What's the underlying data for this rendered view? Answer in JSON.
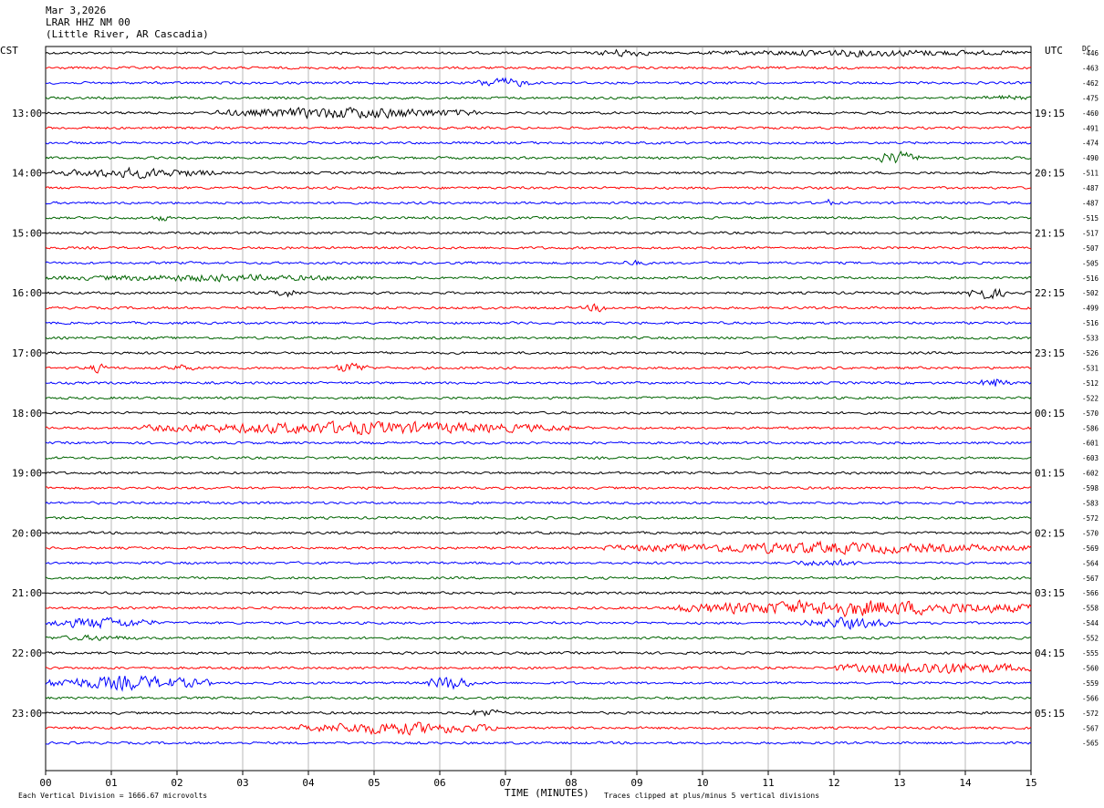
{
  "header": {
    "date": "Mar 3,2026",
    "station": "LRAR HHZ NM 00",
    "location": "(Little River, AR Cascadia)"
  },
  "left_tz": "CST",
  "right_tz": "UTC",
  "dc_label": "DC",
  "footer": {
    "scale": "Each Vertical Division = 1666.67 microvolts",
    "xlabel": "TIME (MINUTES)",
    "clip_note": "Traces clipped at plus/minus 5 vertical divisions"
  },
  "chart_data": {
    "type": "line",
    "title": "LRAR HHZ NM 00",
    "xlabel": "TIME (MINUTES)",
    "x_range": [
      0,
      15
    ],
    "x_ticks": [
      "00",
      "01",
      "02",
      "03",
      "04",
      "05",
      "06",
      "07",
      "08",
      "09",
      "10",
      "11",
      "12",
      "13",
      "14",
      "15"
    ],
    "trace_minutes": 15,
    "traces_per_hour": 4,
    "colors": [
      "#000000",
      "#ff0000",
      "#0000ff",
      "#006400"
    ],
    "left_hour_labels": [
      "13:00",
      "14:00",
      "15:00",
      "16:00",
      "17:00",
      "18:00",
      "19:00",
      "20:00",
      "21:00",
      "22:00",
      "23:00"
    ],
    "right_hour_labels": [
      "19:15",
      "20:15",
      "21:15",
      "22:15",
      "23:15",
      "00:15",
      "01:15",
      "02:15",
      "03:15",
      "04:15",
      "05:15"
    ],
    "dc_offsets": [
      -446,
      -463,
      -462,
      -475,
      -460,
      -491,
      -474,
      -490,
      -511,
      -487,
      -487,
      -515,
      -517,
      -507,
      -505,
      -516,
      -502,
      -499,
      -516,
      -533,
      -526,
      -531,
      -512,
      -522,
      -570,
      -586,
      -601,
      -603,
      -602,
      -598,
      -583,
      -572,
      -570,
      -569,
      -564,
      -567,
      -566,
      -558,
      -544,
      -552,
      -555,
      -560,
      -559,
      -566,
      -572,
      -567,
      -565
    ],
    "events": [
      {
        "trace": 0,
        "start_min": 8.4,
        "end_min": 9.2,
        "amplitude": 6
      },
      {
        "trace": 0,
        "start_min": 10.0,
        "end_min": 15.0,
        "amplitude": 5
      },
      {
        "trace": 2,
        "start_min": 6.5,
        "end_min": 7.4,
        "amplitude": 7
      },
      {
        "trace": 3,
        "start_min": 14.2,
        "end_min": 15.0,
        "amplitude": 4
      },
      {
        "trace": 4,
        "start_min": 2.6,
        "end_min": 6.6,
        "amplitude": 8
      },
      {
        "trace": 7,
        "start_min": 12.6,
        "end_min": 13.3,
        "amplitude": 9
      },
      {
        "trace": 8,
        "start_min": 0.1,
        "end_min": 2.6,
        "amplitude": 7
      },
      {
        "trace": 10,
        "start_min": 11.8,
        "end_min": 12.0,
        "amplitude": 6
      },
      {
        "trace": 11,
        "start_min": 1.6,
        "end_min": 1.9,
        "amplitude": 5
      },
      {
        "trace": 14,
        "start_min": 8.7,
        "end_min": 9.2,
        "amplitude": 4
      },
      {
        "trace": 15,
        "start_min": 0.0,
        "end_min": 5.0,
        "amplitude": 5
      },
      {
        "trace": 16,
        "start_min": 3.4,
        "end_min": 3.9,
        "amplitude": 6
      },
      {
        "trace": 16,
        "start_min": 14.0,
        "end_min": 14.6,
        "amplitude": 9
      },
      {
        "trace": 17,
        "start_min": 8.2,
        "end_min": 8.6,
        "amplitude": 6
      },
      {
        "trace": 21,
        "start_min": 0.6,
        "end_min": 1.0,
        "amplitude": 6
      },
      {
        "trace": 21,
        "start_min": 1.8,
        "end_min": 2.3,
        "amplitude": 5
      },
      {
        "trace": 21,
        "start_min": 4.4,
        "end_min": 4.9,
        "amplitude": 8
      },
      {
        "trace": 22,
        "start_min": 14.2,
        "end_min": 14.7,
        "amplitude": 7
      },
      {
        "trace": 25,
        "start_min": 1.5,
        "end_min": 8.0,
        "amplitude": 9
      },
      {
        "trace": 33,
        "start_min": 8.5,
        "end_min": 15.0,
        "amplitude": 8
      },
      {
        "trace": 34,
        "start_min": 11.3,
        "end_min": 12.5,
        "amplitude": 5
      },
      {
        "trace": 37,
        "start_min": 9.5,
        "end_min": 15.0,
        "amplitude": 11
      },
      {
        "trace": 38,
        "start_min": 0.0,
        "end_min": 1.7,
        "amplitude": 8
      },
      {
        "trace": 38,
        "start_min": 11.5,
        "end_min": 12.9,
        "amplitude": 8
      },
      {
        "trace": 39,
        "start_min": 0.0,
        "end_min": 1.5,
        "amplitude": 4
      },
      {
        "trace": 41,
        "start_min": 12.0,
        "end_min": 15.0,
        "amplitude": 9
      },
      {
        "trace": 42,
        "start_min": 0.0,
        "end_min": 2.5,
        "amplitude": 10
      },
      {
        "trace": 42,
        "start_min": 5.8,
        "end_min": 6.5,
        "amplitude": 10
      },
      {
        "trace": 44,
        "start_min": 6.4,
        "end_min": 7.0,
        "amplitude": 6
      },
      {
        "trace": 45,
        "start_min": 3.8,
        "end_min": 6.9,
        "amplitude": 9
      }
    ]
  }
}
